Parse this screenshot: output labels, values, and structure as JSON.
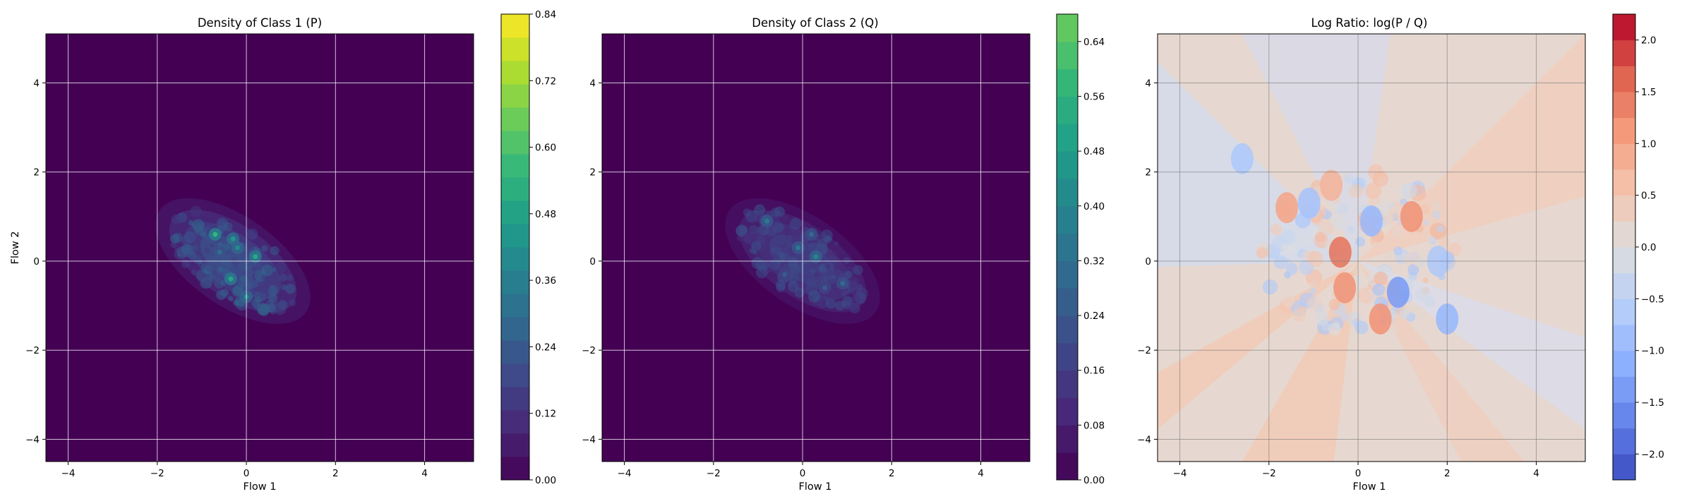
{
  "chart_data": [
    {
      "type": "heatmap",
      "title": "Density of Class 1 (P)",
      "xlabel": "Flow 1",
      "ylabel": "Flow 2",
      "xlim": [
        -4.5,
        5.1
      ],
      "ylim": [
        -4.5,
        5.1
      ],
      "xticks": [
        -4,
        -2,
        0,
        2,
        4
      ],
      "yticks": [
        -4,
        -2,
        0,
        2,
        4
      ],
      "grid": true,
      "colormap": "viridis",
      "background_color": "#440154",
      "colorbar": {
        "range": [
          0.0,
          0.84
        ],
        "ticks": [
          "0.00",
          "0.12",
          "0.24",
          "0.36",
          "0.48",
          "0.60",
          "0.72",
          "0.84"
        ],
        "levels": 20
      },
      "density_region": {
        "center": [
          -0.3,
          0.0
        ],
        "extent": "approx x -2.2 to 2.0, y -2.0 to 1.9, elongated along the negative diagonal"
      },
      "peaks": [
        {
          "x": -0.7,
          "y": 0.6,
          "value": 0.55
        },
        {
          "x": -0.3,
          "y": 0.5,
          "value": 0.45
        },
        {
          "x": 0.2,
          "y": 0.1,
          "value": 0.5
        },
        {
          "x": -0.2,
          "y": 0.3,
          "value": 0.4
        },
        {
          "x": -0.35,
          "y": -0.4,
          "value": 0.5
        },
        {
          "x": 0.0,
          "y": -0.8,
          "value": 0.4
        },
        {
          "x": -0.6,
          "y": 0.2,
          "value": 0.3
        }
      ]
    },
    {
      "type": "heatmap",
      "title": "Density of Class 2 (Q)",
      "xlabel": "Flow 1",
      "ylabel": "",
      "xlim": [
        -4.5,
        5.1
      ],
      "ylim": [
        -4.5,
        5.1
      ],
      "xticks": [
        -4,
        -2,
        0,
        2,
        4
      ],
      "yticks": [
        -4,
        -2,
        0,
        2,
        4
      ],
      "grid": true,
      "colormap": "viridis",
      "background_color": "#440154",
      "colorbar": {
        "range": [
          0.0,
          0.68
        ],
        "ticks": [
          "0.00",
          "0.08",
          "0.16",
          "0.24",
          "0.32",
          "0.40",
          "0.48",
          "0.56",
          "0.64"
        ],
        "levels": 17
      },
      "density_region": {
        "center": [
          0.0,
          0.0
        ],
        "extent": "approx x -2.1 to 2.2, y -2.0 to 1.9, elongated along the negative diagonal"
      },
      "peaks": [
        {
          "x": -0.8,
          "y": 0.9,
          "value": 0.35
        },
        {
          "x": 0.3,
          "y": 0.1,
          "value": 0.4
        },
        {
          "x": -0.1,
          "y": 0.3,
          "value": 0.35
        },
        {
          "x": 0.9,
          "y": -0.5,
          "value": 0.3
        },
        {
          "x": 0.5,
          "y": -0.6,
          "value": 0.25
        },
        {
          "x": -0.4,
          "y": -0.3,
          "value": 0.25
        },
        {
          "x": 0.2,
          "y": 0.6,
          "value": 0.3
        }
      ]
    },
    {
      "type": "heatmap",
      "title": "Log Ratio: log(P / Q)",
      "xlabel": "Flow 1",
      "ylabel": "",
      "xlim": [
        -4.5,
        5.1
      ],
      "ylim": [
        -4.5,
        5.1
      ],
      "xticks": [
        -4,
        -2,
        0,
        2,
        4
      ],
      "yticks": [
        -4,
        -2,
        0,
        2,
        4
      ],
      "grid": true,
      "colormap": "coolwarm",
      "colorbar": {
        "range": [
          -2.25,
          2.25
        ],
        "ticks": [
          "−2.0",
          "−1.5",
          "−1.0",
          "−0.5",
          "0.0",
          "0.5",
          "1.0",
          "1.5",
          "2.0"
        ],
        "levels": 18
      },
      "positive_regions": [
        {
          "x": -1.6,
          "y": 1.2,
          "value": 1.0
        },
        {
          "x": -0.4,
          "y": 0.2,
          "value": 1.5
        },
        {
          "x": -0.3,
          "y": -0.6,
          "value": 1.2
        },
        {
          "x": 0.5,
          "y": -1.3,
          "value": 1.2
        },
        {
          "x": 1.2,
          "y": 1.0,
          "value": 1.2
        },
        {
          "x": -0.6,
          "y": 1.7,
          "value": 0.8
        }
      ],
      "negative_regions": [
        {
          "x": -2.6,
          "y": 2.3,
          "value": -0.7
        },
        {
          "x": -1.1,
          "y": 1.3,
          "value": -0.8
        },
        {
          "x": 0.3,
          "y": 0.9,
          "value": -1.0
        },
        {
          "x": 0.9,
          "y": -0.7,
          "value": -1.4
        },
        {
          "x": 2.0,
          "y": -1.3,
          "value": -1.0
        },
        {
          "x": 1.8,
          "y": 0.0,
          "value": -0.7
        }
      ]
    }
  ]
}
